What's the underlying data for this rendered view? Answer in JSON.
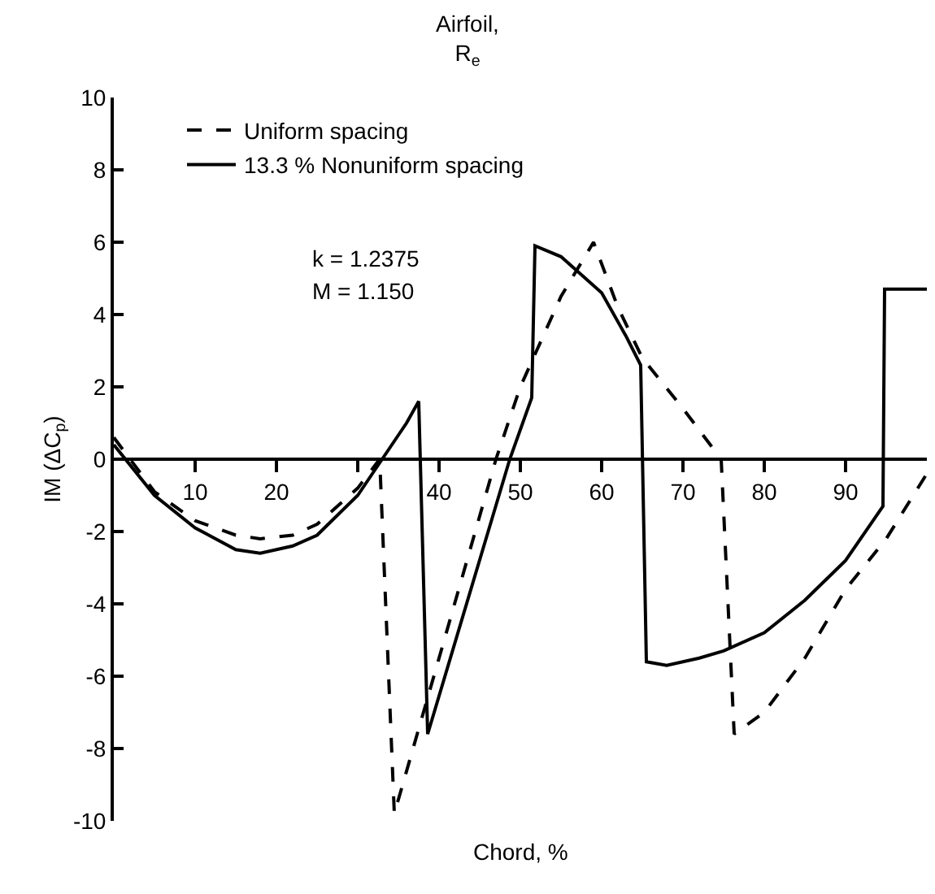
{
  "chart_data": {
    "type": "line",
    "title": "Airfoil,\nR$_{e}$",
    "xlabel": "Chord, %",
    "ylabel": "IM (ΔC$_{p}$)",
    "xlim": [
      0,
      100
    ],
    "xticks": [
      10,
      20,
      {
        "value": 30,
        "label": null
      },
      40,
      50,
      60,
      70,
      80,
      90
    ],
    "ylim": [
      -10,
      10
    ],
    "yticks": [
      -10,
      -8,
      -6,
      -4,
      -2,
      0,
      2,
      4,
      6,
      8,
      10
    ],
    "legend": "top left",
    "marker": "none",
    "annotations": [
      "k = 1.2375",
      "M = 1.150"
    ],
    "series": [
      {
        "name": "Uniform spacing",
        "color": "#000000",
        "line_style": "dashed",
        "x": [
          0,
          5,
          10,
          15,
          18,
          22,
          25,
          30,
          32.7,
          34.5,
          40,
          47,
          50,
          52,
          55,
          59,
          62,
          65,
          70,
          74.7,
          76.3,
          80,
          85,
          90,
          95,
          100
        ],
        "values": [
          0.6,
          -0.9,
          -1.7,
          -2.1,
          -2.2,
          -2.1,
          -1.8,
          -0.8,
          0,
          -9.8,
          -5.5,
          0,
          2,
          3,
          4.5,
          6,
          4.2,
          2.8,
          1.4,
          0,
          -7.6,
          -7,
          -5.5,
          -3.6,
          -2.2,
          -0.4
        ]
      },
      {
        "name": "13.3 % Nonuniform spacing",
        "color": "#000000",
        "line_style": "solid",
        "x": [
          0,
          5,
          10,
          15,
          18,
          22,
          25,
          30,
          33,
          36,
          37.5,
          38.6,
          48.7,
          51.4,
          51.8,
          55,
          60,
          63,
          64.8,
          65.5,
          68,
          72,
          75,
          80,
          85,
          90,
          94.6,
          94.8,
          100
        ],
        "values": [
          0.4,
          -1,
          -1.9,
          -2.5,
          -2.6,
          -2.4,
          -2.1,
          -1,
          0,
          1,
          1.6,
          -7.6,
          0,
          1.7,
          5.9,
          5.6,
          4.6,
          3.4,
          2.6,
          -5.6,
          -5.7,
          -5.5,
          -5.3,
          -4.8,
          -3.9,
          -2.8,
          -1.3,
          4.7,
          4.7
        ]
      }
    ]
  }
}
